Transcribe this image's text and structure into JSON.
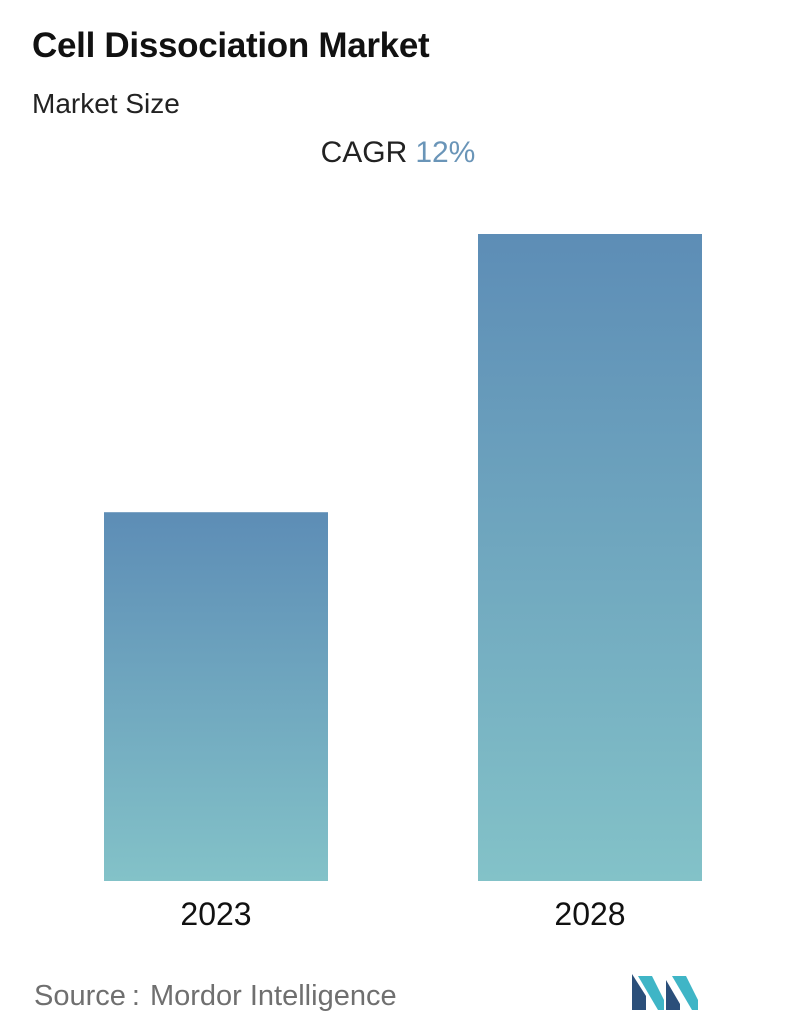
{
  "header": {
    "title": "Cell Dissociation Market",
    "subtitle": "Market Size"
  },
  "cagr": {
    "label": "CAGR",
    "value": "12%",
    "value_color": "#6a95b8"
  },
  "chart_data": {
    "type": "bar",
    "categories": [
      "2023",
      "2028"
    ],
    "values": [
      57,
      100
    ],
    "value_unit": "relative bar height, 2028 = 100 (no values printed)",
    "ylim": [
      0,
      100
    ],
    "grid": false,
    "legend": "none",
    "bar_gradient": {
      "top": "#5d8db6",
      "bottom": "#83c2c8"
    }
  },
  "footer": {
    "source_label": "Source",
    "source_separator": ":",
    "source_name": "Mordor Intelligence",
    "logo_icon": "mordor-intelligence-logo-icon",
    "logo_colors": [
      "#2b4f7a",
      "#3fb5c6"
    ]
  }
}
